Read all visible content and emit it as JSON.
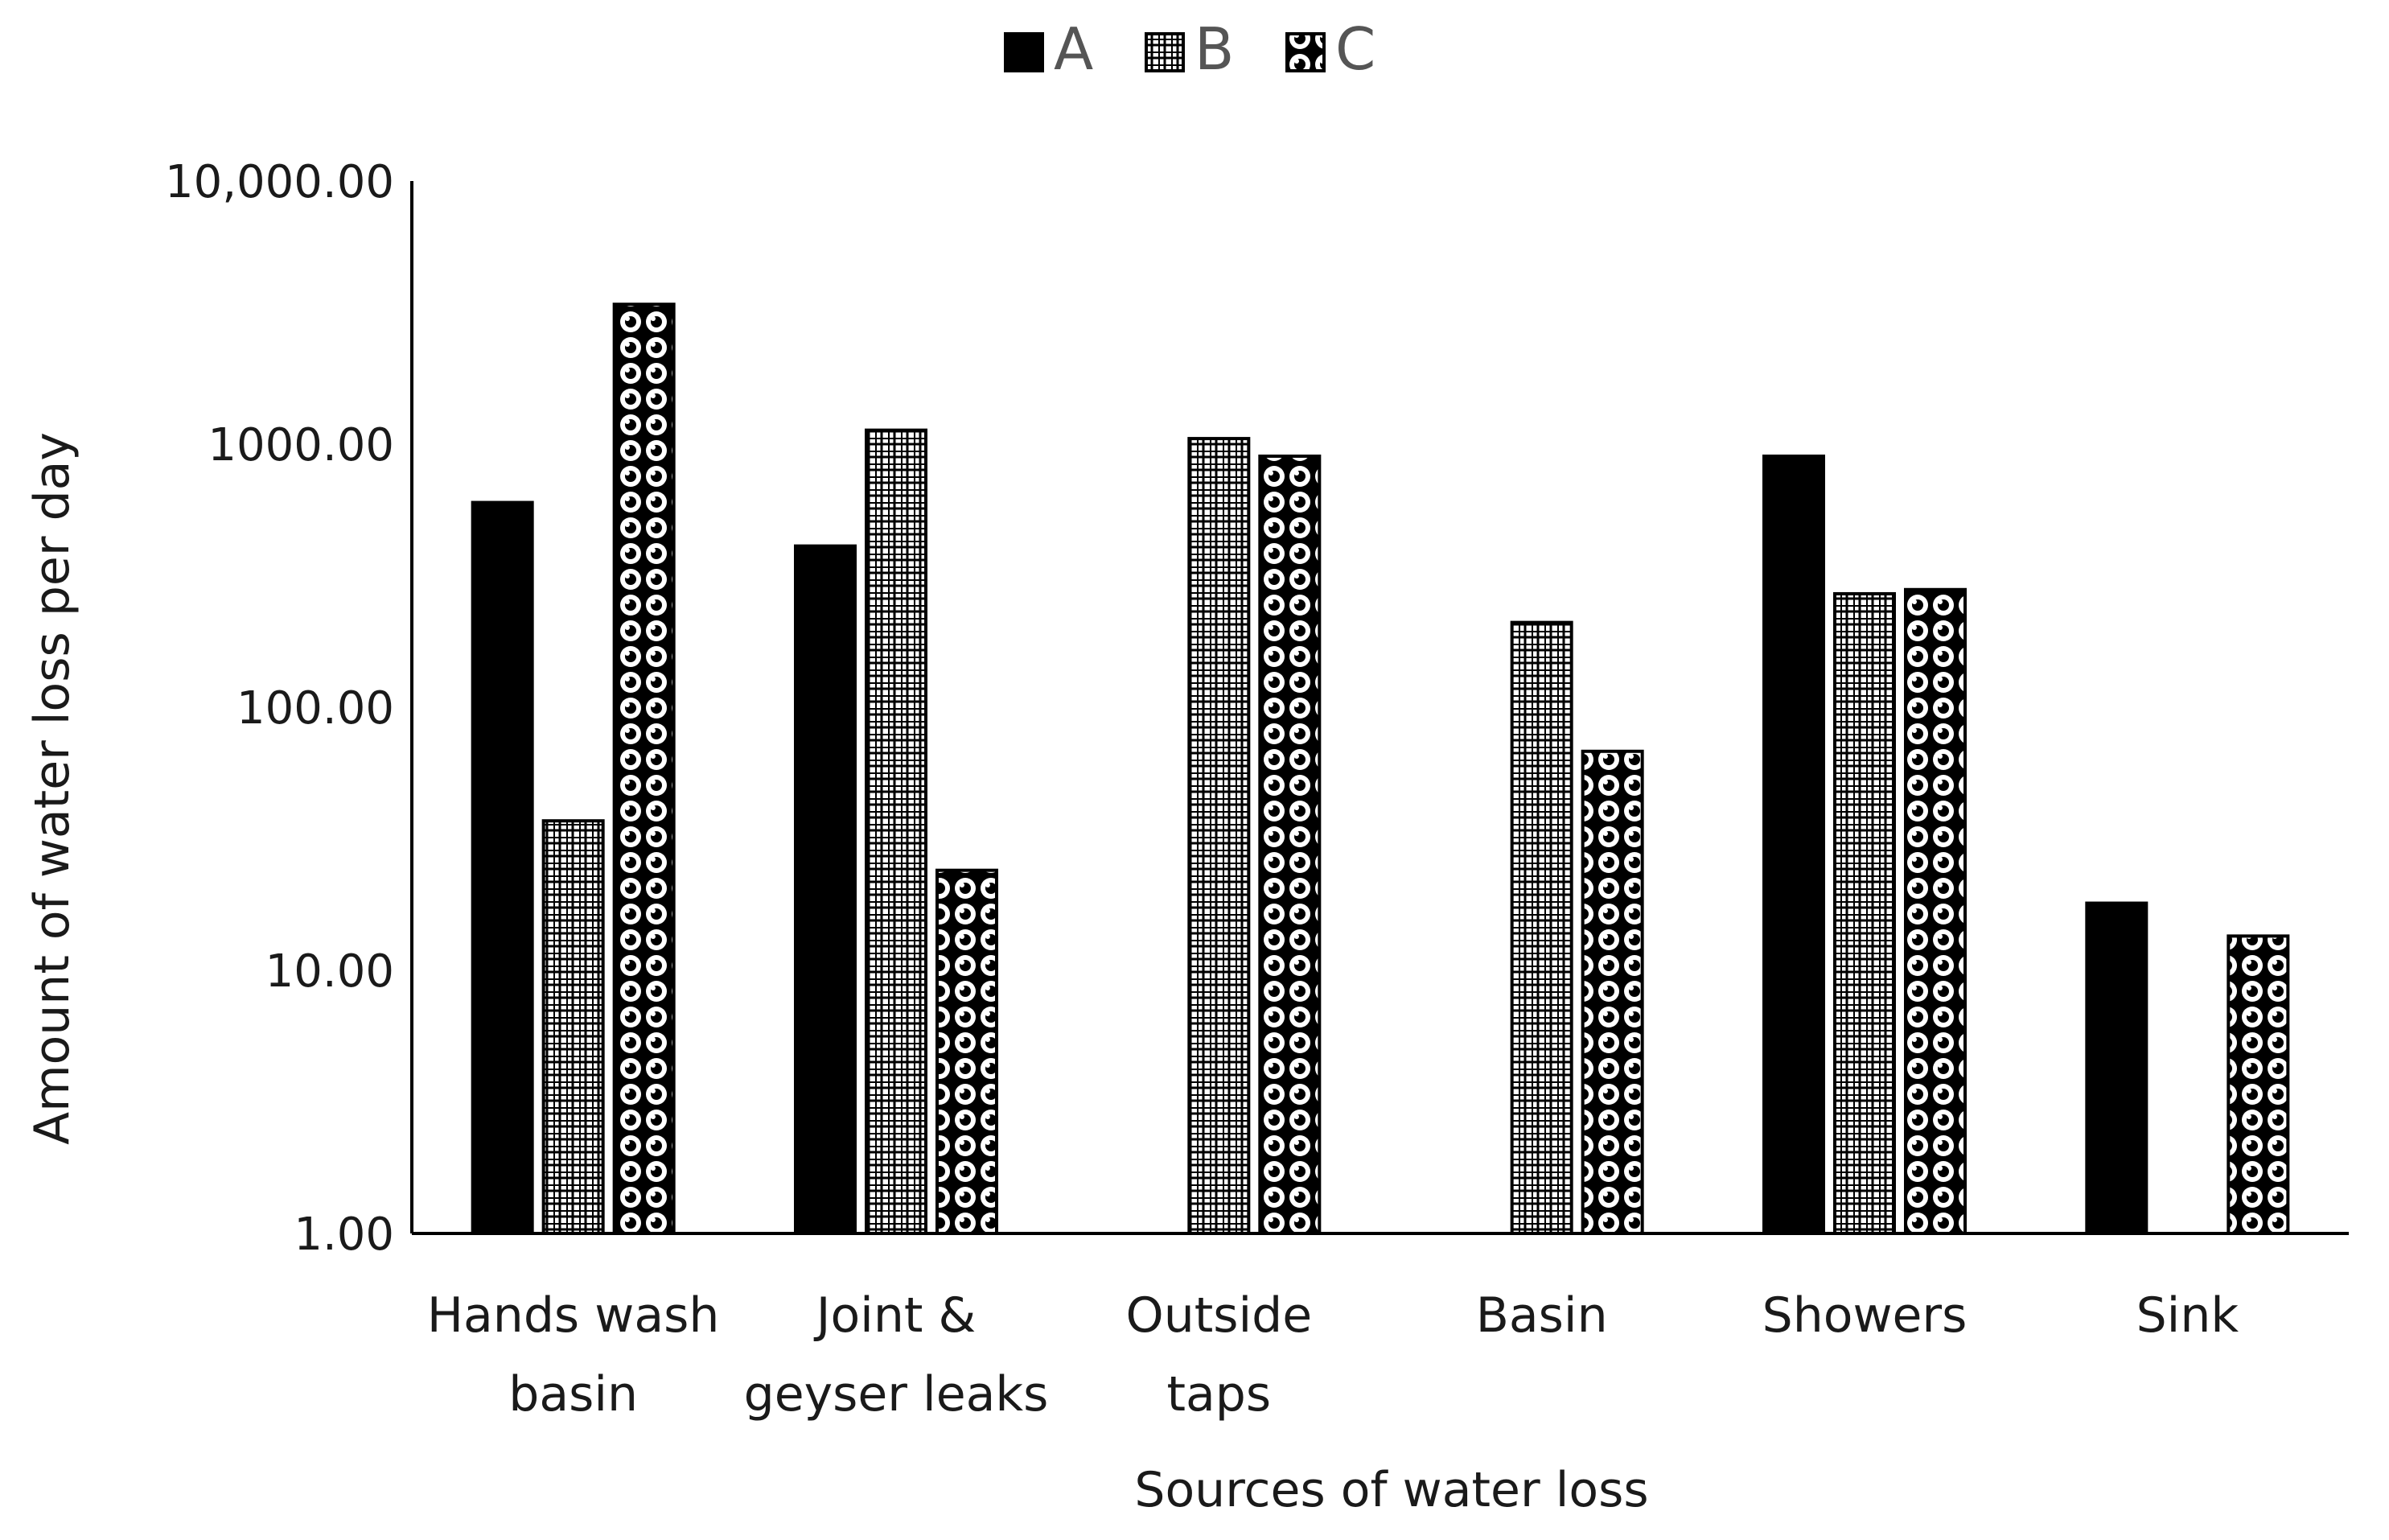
{
  "chart_data": {
    "type": "bar",
    "scale": "log",
    "categories": [
      [
        "Hands wash",
        "basin"
      ],
      [
        "Joint &",
        "geyser leaks"
      ],
      [
        "Outside",
        "taps"
      ],
      [
        "Basin"
      ],
      [
        "Showers"
      ],
      [
        "Sink"
      ]
    ],
    "series": [
      {
        "name": "A",
        "pattern": "solid",
        "values": [
          600,
          410,
          null,
          null,
          900,
          18
        ]
      },
      {
        "name": "B",
        "pattern": "grid",
        "values": [
          37,
          1130,
          1050,
          210,
          270,
          null
        ]
      },
      {
        "name": "C",
        "pattern": "dots",
        "values": [
          3400,
          24,
          900,
          68,
          280,
          13.5
        ]
      }
    ],
    "xlabel": "Sources of water loss",
    "ylabel": "Amount of water loss per day",
    "ylim": [
      1,
      10000
    ],
    "yticks": [
      1,
      10,
      100,
      1000,
      10000
    ],
    "ytick_labels": [
      "1.00",
      "10.00",
      "100.00",
      "1000.00",
      "10,000.00"
    ],
    "legend_position": "top-center",
    "gridlines": false,
    "colors": {
      "bar_fill": "#000000",
      "bar_outline": "#000000",
      "background": "#ffffff"
    }
  }
}
